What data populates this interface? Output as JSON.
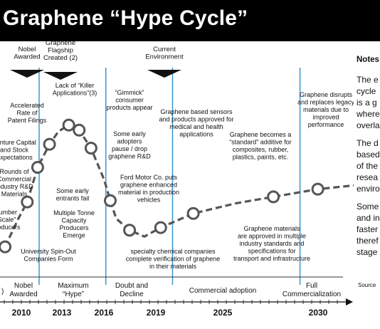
{
  "title": "Graphene “Hype Cycle”",
  "colors": {
    "banner": "#000000",
    "timeline_line": "#2f8fd0",
    "curve": "#555555",
    "dot_fill": "#ffffff"
  },
  "markers": [
    {
      "lines": [
        "Nobel",
        "Awarded"
      ]
    },
    {
      "lines": [
        "Graphene",
        "Flagship",
        "Created (2)"
      ]
    },
    {
      "lines": [
        "Current",
        "Environment"
      ]
    }
  ],
  "annotations": [
    {
      "lines": [
        "Accelerated",
        "Rate of",
        "Patent Filings"
      ]
    },
    {
      "lines": [
        "Venture Capital",
        "and Stock",
        "Expectations"
      ]
    },
    {
      "lines": [
        "Rounds of",
        "Commercial",
        "Industry R&D",
        "Materials"
      ]
    },
    {
      "lines": [
        "Number",
        "“Scale”",
        "Producers"
      ]
    },
    {
      "lines": [
        "Lack of “Killer",
        "Applications”(3)"
      ]
    },
    {
      "lines": [
        "“Gimmick”",
        "consumer",
        "products appear"
      ]
    },
    {
      "lines": [
        "Some early",
        "adopters",
        "pause / drop",
        "graphene R&D"
      ]
    },
    {
      "lines": [
        "Some early",
        "entrants fail"
      ]
    },
    {
      "lines": [
        "Multiple Tonne",
        "Capacity",
        "Producers",
        "Emerge"
      ]
    },
    {
      "lines": [
        "University Spin-Out",
        "Companies Form"
      ]
    },
    {
      "lines": [
        "Ford Motor Co. puts",
        "graphene enhanced",
        "material in production",
        "vehicles"
      ]
    },
    {
      "lines": [
        "specialty chemical companies",
        "complete verification of graphene",
        "in their materials"
      ]
    },
    {
      "lines": [
        "Graphene based sensors",
        "and products approved for",
        "medical and health",
        "applications"
      ]
    },
    {
      "lines": [
        "Graphene becomes a",
        "“standard” additive for",
        "composites, rubber,",
        "plastics, paints, etc."
      ]
    },
    {
      "lines": [
        "Graphene materials",
        "are approved in multiple",
        "industry standards and",
        "specifications for",
        "transport and infrastructure"
      ]
    },
    {
      "lines": [
        "Graphene disrupts",
        "and replaces legacy",
        "materials due to",
        "improved",
        "performance"
      ]
    }
  ],
  "notes": {
    "title": "Notes",
    "paragraphs": [
      [
        "The e",
        "cycle",
        "is a g",
        "where",
        "overla"
      ],
      [
        "The d",
        "based",
        "of the",
        "resea",
        "enviro"
      ],
      [
        "Some",
        "and in",
        "faster",
        "theref",
        "stage"
      ]
    ],
    "source": "Source"
  },
  "chart_data": {
    "type": "line",
    "title": "Graphene “Hype Cycle”",
    "xlabel": "",
    "ylabel": "",
    "x_ticks": [
      "2010",
      "2013",
      "2016",
      "2019",
      "2025",
      "2030"
    ],
    "phases": [
      ")",
      "Nobel Awarded",
      "Maximum “Hype”",
      "Doubt and Decline",
      "Commercial adoption",
      "Full Commercialization"
    ],
    "y_units": "relative expectations (0 = baseline, 1 = peak)",
    "series": [
      {
        "x": [
          2008.9,
          2009.8,
          2010.4,
          2011.1,
          2011.9,
          2012.5,
          2013.2,
          2013.9,
          2014.7,
          2015.6,
          2016.0,
          2016.4,
          2017.3,
          2018.3,
          2019.4,
          2021.6,
          2024.5,
          2027.0,
          2030.0,
          2032.5
        ],
        "y": [
          0.03,
          0.25,
          0.38,
          0.65,
          0.83,
          0.93,
          0.98,
          0.94,
          0.8,
          0.55,
          0.39,
          0.25,
          0.16,
          0.11,
          0.18,
          0.29,
          0.37,
          0.42,
          0.48,
          0.51
        ],
        "markers": [
          true,
          false,
          true,
          true,
          true,
          false,
          true,
          true,
          true,
          false,
          true,
          false,
          true,
          false,
          true,
          true,
          false,
          true,
          true,
          false
        ]
      }
    ],
    "grid": false,
    "legend": "none"
  }
}
